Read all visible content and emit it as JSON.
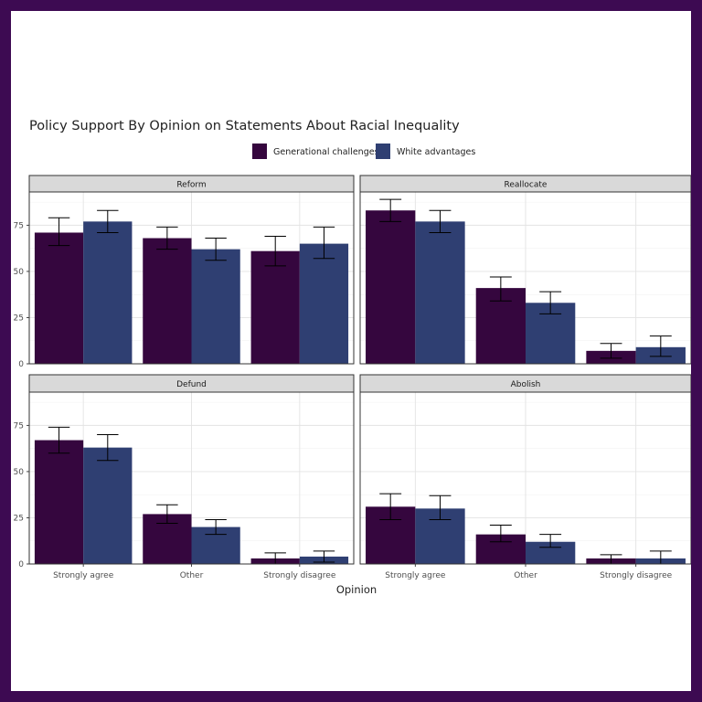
{
  "chart_data": {
    "type": "bar",
    "title": "Policy Support By Opinion on Statements About Racial Inequality",
    "xlabel": "Opinion",
    "ylabel": "",
    "ylim": [
      0,
      93
    ],
    "yticks": [
      0,
      25,
      50,
      75
    ],
    "categories": [
      "Strongly agree",
      "Other",
      "Strongly disagree"
    ],
    "legend": {
      "position": "top",
      "entries": [
        {
          "name": "Generational challenges",
          "color": "#35063e"
        },
        {
          "name": "White advantages",
          "color": "#2f3f72"
        }
      ]
    },
    "grid": true,
    "panels": [
      {
        "name": "Reform",
        "series": [
          {
            "name": "Generational challenges",
            "values": [
              71,
              68,
              61
            ],
            "err_low": [
              64,
              62,
              53
            ],
            "err_high": [
              79,
              74,
              69
            ]
          },
          {
            "name": "White advantages",
            "values": [
              77,
              62,
              65
            ],
            "err_low": [
              71,
              56,
              57
            ],
            "err_high": [
              83,
              68,
              74
            ]
          }
        ]
      },
      {
        "name": "Reallocate",
        "series": [
          {
            "name": "Generational challenges",
            "values": [
              83,
              41,
              7
            ],
            "err_low": [
              77,
              34,
              3
            ],
            "err_high": [
              89,
              47,
              11
            ]
          },
          {
            "name": "White advantages",
            "values": [
              77,
              33,
              9
            ],
            "err_low": [
              71,
              27,
              4
            ],
            "err_high": [
              83,
              39,
              15
            ]
          }
        ]
      },
      {
        "name": "Defund",
        "series": [
          {
            "name": "Generational challenges",
            "values": [
              67,
              27,
              3
            ],
            "err_low": [
              60,
              22,
              0
            ],
            "err_high": [
              74,
              32,
              6
            ]
          },
          {
            "name": "White advantages",
            "values": [
              63,
              20,
              4
            ],
            "err_low": [
              56,
              16,
              1
            ],
            "err_high": [
              70,
              24,
              7
            ]
          }
        ]
      },
      {
        "name": "Abolish",
        "series": [
          {
            "name": "Generational challenges",
            "values": [
              31,
              16,
              3
            ],
            "err_low": [
              24,
              12,
              0
            ],
            "err_high": [
              38,
              21,
              5
            ]
          },
          {
            "name": "White advantages",
            "values": [
              30,
              12,
              3
            ],
            "err_low": [
              24,
              9,
              0
            ],
            "err_high": [
              37,
              16,
              7
            ]
          }
        ]
      }
    ]
  }
}
